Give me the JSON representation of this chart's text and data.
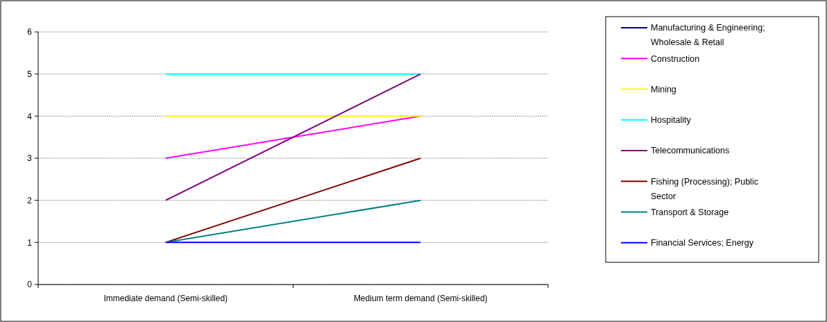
{
  "chart_data": {
    "type": "line",
    "categories": [
      "Immediate demand (Semi-skilled)",
      "Medium term demand (Semi-skilled)"
    ],
    "ylim": [
      0,
      6
    ],
    "yticks": [
      0,
      1,
      2,
      3,
      4,
      5,
      6
    ],
    "grid": "y",
    "legend": "right",
    "marker": "none",
    "line_style": "solid",
    "series": [
      {
        "name": "Manufacturing & Engineering; Wholesale & Retail",
        "color": "#000080",
        "values": [
          null,
          null
        ]
      },
      {
        "name": "Construction",
        "color": "#ff00ff",
        "values": [
          3,
          4
        ]
      },
      {
        "name": "Mining",
        "color": "#ffff00",
        "values": [
          4,
          4
        ]
      },
      {
        "name": "Hospitality",
        "color": "#00ffff",
        "values": [
          5,
          5
        ]
      },
      {
        "name": "Telecommunications",
        "color": "#800080",
        "values": [
          2,
          5
        ]
      },
      {
        "name": "Fishing (Processing); Public Sector",
        "color": "#800000",
        "values": [
          1,
          3
        ]
      },
      {
        "name": "Transport & Storage",
        "color": "#008080",
        "values": [
          1,
          2
        ]
      },
      {
        "name": "Financial Services; Energy",
        "color": "#0000ff",
        "values": [
          1,
          1
        ]
      }
    ]
  }
}
